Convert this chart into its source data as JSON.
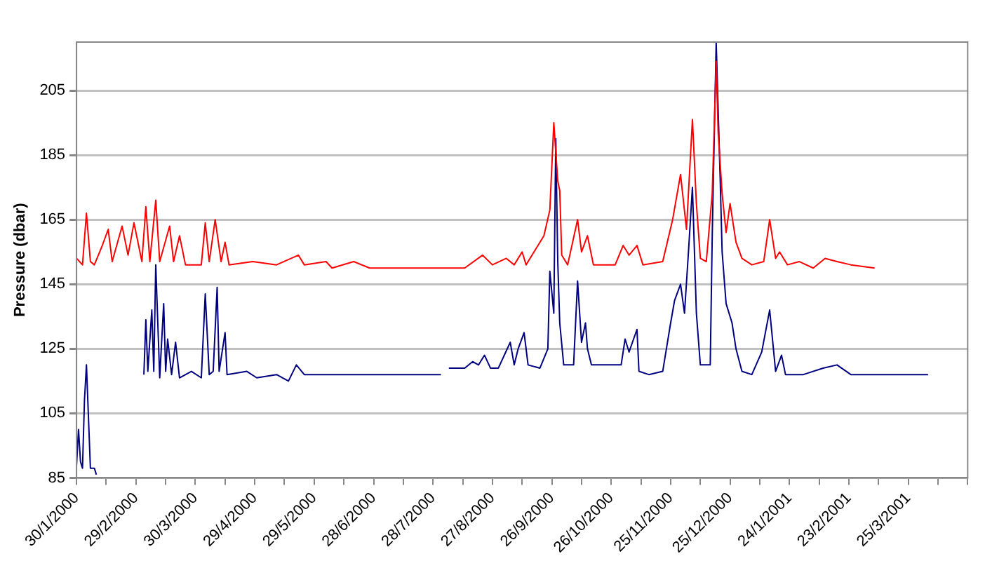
{
  "chart_data": {
    "type": "line",
    "ylabel": "Pressure (dbar)",
    "xlim": [
      "2000-01-30",
      "2001-04-24"
    ],
    "ylim": [
      85,
      220
    ],
    "yticks": [
      85,
      105,
      125,
      145,
      165,
      185,
      205
    ],
    "xticks": [
      {
        "value": "2000-01-30",
        "label": "30/1/2000"
      },
      {
        "value": "2000-02-14",
        "label": null
      },
      {
        "value": "2000-02-29",
        "label": "29/2/2000"
      },
      {
        "value": "2000-03-15",
        "label": null
      },
      {
        "value": "2000-03-30",
        "label": "30/3/2000"
      },
      {
        "value": "2000-04-14",
        "label": null
      },
      {
        "value": "2000-04-29",
        "label": "29/4/2000"
      },
      {
        "value": "2000-05-14",
        "label": null
      },
      {
        "value": "2000-05-29",
        "label": "29/5/2000"
      },
      {
        "value": "2000-06-13",
        "label": null
      },
      {
        "value": "2000-06-28",
        "label": "28/6/2000"
      },
      {
        "value": "2000-07-13",
        "label": null
      },
      {
        "value": "2000-07-28",
        "label": "28/7/2000"
      },
      {
        "value": "2000-08-12",
        "label": null
      },
      {
        "value": "2000-08-27",
        "label": "27/8/2000"
      },
      {
        "value": "2000-09-11",
        "label": null
      },
      {
        "value": "2000-09-26",
        "label": "26/9/2000"
      },
      {
        "value": "2000-10-11",
        "label": null
      },
      {
        "value": "2000-10-26",
        "label": "26/10/2000"
      },
      {
        "value": "2000-11-10",
        "label": null
      },
      {
        "value": "2000-11-25",
        "label": "25/11/2000"
      },
      {
        "value": "2000-12-10",
        "label": null
      },
      {
        "value": "2000-12-25",
        "label": "25/12/2000"
      },
      {
        "value": "2001-01-09",
        "label": null
      },
      {
        "value": "2001-01-24",
        "label": "24/1/2001"
      },
      {
        "value": "2001-02-08",
        "label": null
      },
      {
        "value": "2001-02-23",
        "label": "23/2/2001"
      },
      {
        "value": "2001-03-10",
        "label": null
      },
      {
        "value": "2001-03-25",
        "label": "25/3/2001"
      },
      {
        "value": "2001-04-09",
        "label": null
      },
      {
        "value": "2001-04-24",
        "label": null
      }
    ],
    "grid": "y",
    "legend": false,
    "marker": "none",
    "line_style": "solid",
    "series": [
      {
        "color": "#ff0000",
        "x": [
          "2000-01-30",
          "2000-02-02",
          "2000-02-04",
          "2000-02-06",
          "2000-02-08",
          "2000-02-12",
          "2000-02-15",
          "2000-02-17",
          "2000-02-22",
          "2000-02-25",
          "2000-02-28",
          "2000-03-03",
          "2000-03-05",
          "2000-03-07",
          "2000-03-10",
          "2000-03-12",
          "2000-03-17",
          "2000-03-19",
          "2000-03-22",
          "2000-03-25",
          "2000-04-02",
          "2000-04-04",
          "2000-04-06",
          "2000-04-09",
          "2000-04-12",
          "2000-04-14",
          "2000-04-16",
          "2000-04-28",
          "2000-05-10",
          "2000-05-21",
          "2000-05-24",
          "2000-06-04",
          "2000-06-07",
          "2000-06-18",
          "2000-06-26",
          "2000-07-20",
          "2000-08-13",
          "2000-08-22",
          "2000-08-27",
          "2000-09-03",
          "2000-09-07",
          "2000-09-11",
          "2000-09-13",
          "2000-09-22",
          "2000-09-25",
          "2000-09-27",
          "2000-09-29",
          "2000-09-30",
          "2000-10-01",
          "2000-10-04",
          "2000-10-09",
          "2000-10-11",
          "2000-10-14",
          "2000-10-17",
          "2000-10-28",
          "2000-11-01",
          "2000-11-04",
          "2000-11-08",
          "2000-11-11",
          "2000-11-21",
          "2000-11-26",
          "2000-11-30",
          "2000-12-03",
          "2000-12-06",
          "2000-12-08",
          "2000-12-10",
          "2000-12-13",
          "2000-12-16",
          "2000-12-18",
          "2000-12-19",
          "2000-12-21",
          "2000-12-23",
          "2000-12-25",
          "2000-12-28",
          "2000-12-31",
          "2001-01-05",
          "2001-01-11",
          "2001-01-14",
          "2001-01-17",
          "2001-01-19",
          "2001-01-23",
          "2001-01-29",
          "2001-02-05",
          "2001-02-11",
          "2001-02-17",
          "2001-02-24",
          "2001-03-08"
        ],
        "values": [
          153,
          151,
          167,
          152,
          151,
          157,
          162,
          152,
          163,
          154,
          164,
          152,
          169,
          152,
          171,
          152,
          163,
          152,
          160,
          151,
          151,
          164,
          152,
          165,
          152,
          158,
          151,
          152,
          151,
          154,
          151,
          152,
          150,
          152,
          150,
          150,
          150,
          154,
          151,
          153,
          151,
          155,
          151,
          160,
          168,
          195,
          177,
          174,
          154,
          151,
          165,
          155,
          160,
          151,
          151,
          157,
          154,
          157,
          151,
          152,
          165,
          179,
          162,
          196,
          170,
          153,
          152,
          173,
          214,
          192,
          173,
          161,
          170,
          158,
          153,
          151,
          152,
          165,
          153,
          155,
          151,
          152,
          150,
          153,
          152,
          151,
          150
        ]
      },
      {
        "color": "#000080",
        "x": [
          "2000-01-30",
          "2000-01-31",
          "2000-02-01",
          "2000-02-02",
          "2000-02-03",
          "2000-02-04",
          "2000-02-06",
          "2000-02-08",
          "2000-02-09",
          "2000-02-19",
          "2000-03-04",
          "2000-03-05",
          "2000-03-06",
          "2000-03-08",
          "2000-03-09",
          "2000-03-10",
          "2000-03-12",
          "2000-03-14",
          "2000-03-15",
          "2000-03-16",
          "2000-03-18",
          "2000-03-20",
          "2000-03-22",
          "2000-03-28",
          "2000-04-02",
          "2000-04-04",
          "2000-04-06",
          "2000-04-08",
          "2000-04-10",
          "2000-04-11",
          "2000-04-14",
          "2000-04-15",
          "2000-04-25",
          "2000-04-30",
          "2000-05-10",
          "2000-05-16",
          "2000-05-20",
          "2000-05-24",
          "2000-06-03",
          "2000-06-14",
          "2000-06-26",
          "2000-07-20",
          "2000-08-01",
          "2000-08-03",
          "2000-08-05",
          "2000-08-13",
          "2000-08-17",
          "2000-08-20",
          "2000-08-23",
          "2000-08-26",
          "2000-08-30",
          "2000-09-02",
          "2000-09-05",
          "2000-09-07",
          "2000-09-09",
          "2000-09-12",
          "2000-09-14",
          "2000-09-20",
          "2000-09-24",
          "2000-09-25",
          "2000-09-27",
          "2000-09-28",
          "2000-09-29",
          "2000-09-30",
          "2000-10-02",
          "2000-10-07",
          "2000-10-09",
          "2000-10-11",
          "2000-10-13",
          "2000-10-14",
          "2000-10-16",
          "2000-10-28",
          "2000-10-31",
          "2000-11-02",
          "2000-11-04",
          "2000-11-08",
          "2000-11-09",
          "2000-11-14",
          "2000-11-21",
          "2000-11-25",
          "2000-11-27",
          "2000-11-30",
          "2000-12-02",
          "2000-12-04",
          "2000-12-06",
          "2000-12-08",
          "2000-12-10",
          "2000-12-12",
          "2000-12-15",
          "2000-12-16",
          "2000-12-18",
          "2000-12-20",
          "2000-12-21",
          "2000-12-23",
          "2000-12-26",
          "2000-12-28",
          "2000-12-31",
          "2001-01-05",
          "2001-01-10",
          "2001-01-14",
          "2001-01-17",
          "2001-01-20",
          "2001-01-22",
          "2001-01-31",
          "2001-02-10",
          "2001-02-17",
          "2001-02-24",
          "2001-03-08",
          "2001-03-20",
          "2001-04-04"
        ],
        "values": [
          89,
          100,
          90,
          88,
          109,
          120,
          88,
          88,
          86,
          null,
          117,
          134,
          118,
          137,
          118,
          151,
          116,
          139,
          118,
          128,
          117,
          127,
          116,
          118,
          116,
          142,
          117,
          118,
          144,
          118,
          130,
          117,
          118,
          116,
          117,
          115,
          120,
          117,
          117,
          117,
          117,
          117,
          117,
          null,
          119,
          119,
          121,
          120,
          123,
          119,
          119,
          123,
          127,
          120,
          125,
          130,
          120,
          119,
          125,
          149,
          136,
          190,
          152,
          133,
          120,
          120,
          146,
          127,
          133,
          125,
          120,
          120,
          120,
          128,
          124,
          131,
          118,
          117,
          118,
          133,
          140,
          145,
          136,
          155,
          175,
          136,
          120,
          120,
          120,
          160,
          220,
          178,
          155,
          139,
          133,
          125,
          118,
          117,
          124,
          137,
          118,
          123,
          117,
          117,
          119,
          120,
          117,
          117,
          117,
          117
        ]
      }
    ]
  }
}
